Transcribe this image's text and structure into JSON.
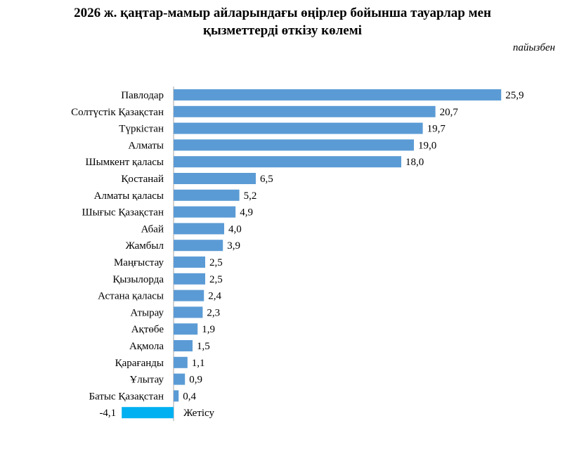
{
  "title_line1": "2026 ж. қаңтар-мамыр айларындағы өңірлер бойынша тауарлар мен",
  "title_line2": "қызметтерді өткізу көлемі",
  "unit": "пайызбен",
  "colors": {
    "bar_positive": "#5b9bd5",
    "bar_negative": "#00b0f0",
    "axis": "#a6a6a6"
  },
  "chart_data": {
    "type": "bar",
    "orientation": "horizontal",
    "categories": [
      "Павлодар",
      "Солтүстік Қазақстан",
      "Түркістан ",
      "Алматы",
      "Шымкент қаласы",
      "Қостанай",
      "Алматы қаласы",
      "Шығыс  Қазақстан",
      "Абай",
      "Жамбыл",
      "Маңғыстау",
      "Қызылорда",
      "Астана қаласы",
      "Атырау",
      "Ақтөбе",
      "Ақмола",
      "Қарағанды",
      "Ұлытау",
      "Батыс Қазақстан",
      "Жетісу"
    ],
    "values": [
      25.9,
      20.7,
      19.7,
      19.0,
      18.0,
      6.5,
      5.2,
      4.9,
      4.0,
      3.9,
      2.5,
      2.5,
      2.4,
      2.3,
      1.9,
      1.5,
      1.1,
      0.9,
      0.4,
      -4.1
    ],
    "value_labels": [
      "25,9",
      "20,7",
      "19,7",
      "19,0",
      "18,0",
      "6,5",
      "5,2",
      "4,9",
      "4,0",
      "3,9",
      "2,5",
      "2,5",
      "2,4",
      "2,3",
      "1,9",
      "1,5",
      "1,1",
      "0,9",
      "0,4",
      "-4,1"
    ],
    "grid": false,
    "legend": "none"
  }
}
